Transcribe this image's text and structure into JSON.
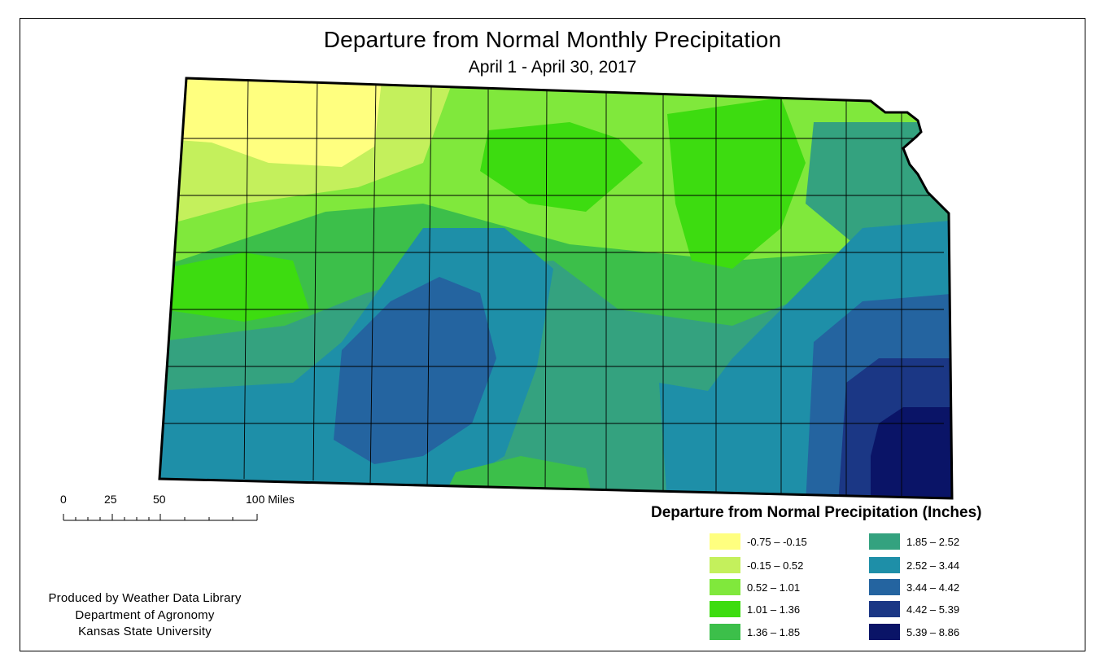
{
  "title": "Departure from Normal Monthly Precipitation",
  "subtitle": "April 1 - April 30, 2017",
  "legend": {
    "title": "Departure from Normal Precipitation (Inches)",
    "items": [
      {
        "label": "-0.75 – -0.15",
        "color": "#ffff7f"
      },
      {
        "label": "-0.15 – 0.52",
        "color": "#c4f05c"
      },
      {
        "label": "0.52 – 1.01",
        "color": "#80e83c"
      },
      {
        "label": "1.01 – 1.36",
        "color": "#3ddc10"
      },
      {
        "label": "1.36 – 1.85",
        "color": "#3cbf4a"
      },
      {
        "label": "1.85 – 2.52",
        "color": "#34a27f"
      },
      {
        "label": "2.52 – 3.44",
        "color": "#1e8fa8"
      },
      {
        "label": "3.44 – 4.42",
        "color": "#2464a0"
      },
      {
        "label": "4.42 – 5.39",
        "color": "#1b3785"
      },
      {
        "label": "5.39 – 8.86",
        "color": "#0a1467"
      }
    ]
  },
  "scale_bar": {
    "labels": [
      "0",
      "25",
      "50",
      "100 Miles"
    ]
  },
  "credit": {
    "line1": "Produced by Weather Data Library",
    "line2": "Department of Agronomy",
    "line3": "Kansas State University"
  }
}
